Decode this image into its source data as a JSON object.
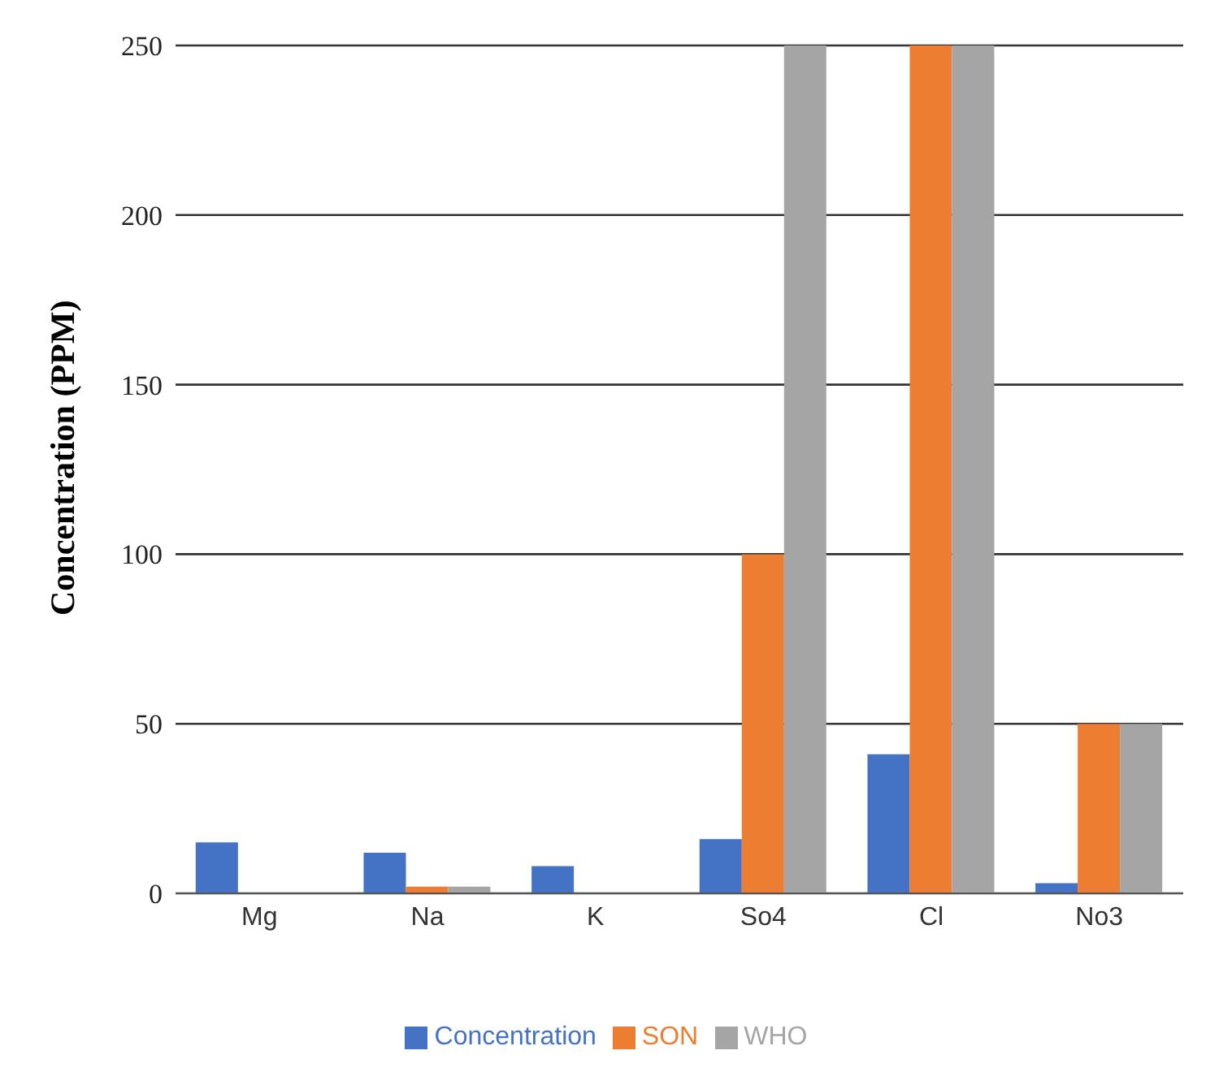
{
  "chart_data": {
    "type": "bar",
    "ylabel": "Concentration (PPM)",
    "categories": [
      "Mg",
      "Na",
      "K",
      "So4",
      "Cl",
      "No3"
    ],
    "series": [
      {
        "name": "Concentration",
        "color": "#4472c4",
        "values": [
          15,
          12,
          8,
          16,
          41,
          3
        ]
      },
      {
        "name": "SON",
        "color": "#ed7d31",
        "values": [
          0,
          2,
          0,
          100,
          250,
          50
        ]
      },
      {
        "name": "WHO",
        "color": "#a5a5a5",
        "values": [
          0,
          2,
          null,
          250,
          250,
          50
        ]
      }
    ],
    "ylim": [
      0,
      250
    ],
    "yticks": [
      0,
      50,
      100,
      150,
      200,
      250
    ],
    "grid": "y",
    "legend": "bottom"
  }
}
